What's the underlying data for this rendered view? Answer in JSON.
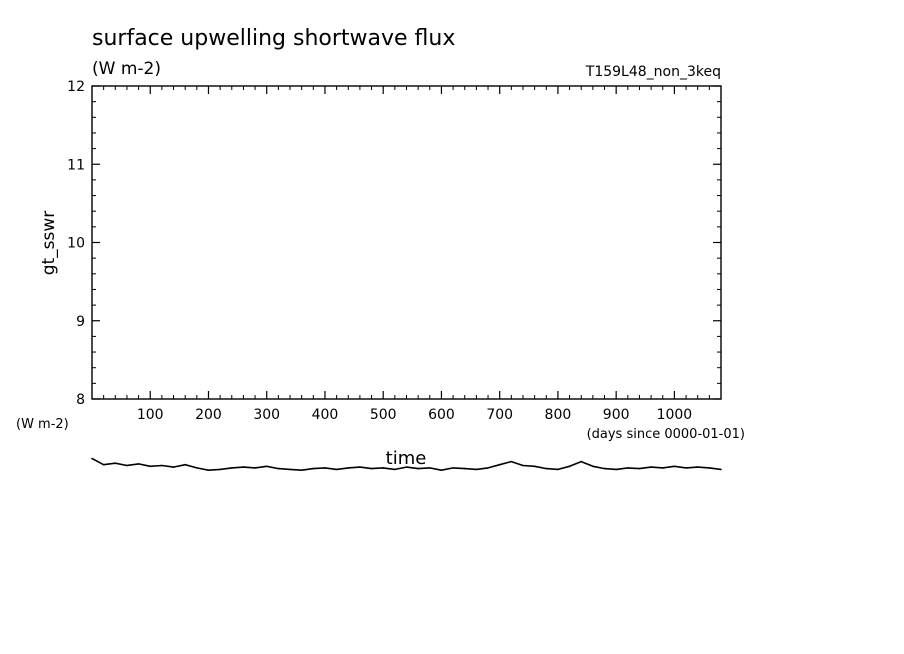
{
  "chart_data": {
    "type": "line",
    "title": "surface upwelling shortwave flux",
    "units": "(W m-2)",
    "run_label": "T159L48_non_3keq",
    "ylabel": "gt_sswr",
    "xlabel": "time",
    "x_units": "(days since 0000-01-01)",
    "y_units_left": "(W m-2)",
    "xlim": [
      0,
      1080
    ],
    "ylim": [
      8,
      12
    ],
    "x_ticks": [
      100,
      200,
      300,
      400,
      500,
      600,
      700,
      800,
      900,
      1000
    ],
    "y_ticks": [
      8,
      9,
      10,
      11,
      12
    ],
    "grid": false,
    "series": [
      {
        "x": [
          0,
          20,
          40,
          60,
          80,
          100,
          120,
          140,
          160,
          180,
          200,
          220,
          240,
          260,
          280,
          300,
          320,
          340,
          360,
          380,
          400,
          420,
          440,
          460,
          480,
          500,
          520,
          540,
          560,
          580,
          600,
          620,
          640,
          660,
          680,
          700,
          720,
          740,
          760,
          780,
          800,
          820,
          840,
          860,
          880,
          900,
          920,
          940,
          960,
          980,
          1000,
          1020,
          1040,
          1060,
          1080
        ],
        "y": [
          7.24,
          7.16,
          7.18,
          7.15,
          7.17,
          7.14,
          7.15,
          7.13,
          7.16,
          7.12,
          7.09,
          7.1,
          7.12,
          7.13,
          7.12,
          7.14,
          7.11,
          7.1,
          7.09,
          7.11,
          7.12,
          7.1,
          7.12,
          7.13,
          7.11,
          7.12,
          7.1,
          7.13,
          7.11,
          7.12,
          7.09,
          7.12,
          7.11,
          7.1,
          7.12,
          7.16,
          7.2,
          7.15,
          7.14,
          7.11,
          7.1,
          7.14,
          7.2,
          7.14,
          7.11,
          7.1,
          7.12,
          7.11,
          7.13,
          7.12,
          7.14,
          7.12,
          7.13,
          7.12,
          7.1
        ]
      }
    ]
  }
}
